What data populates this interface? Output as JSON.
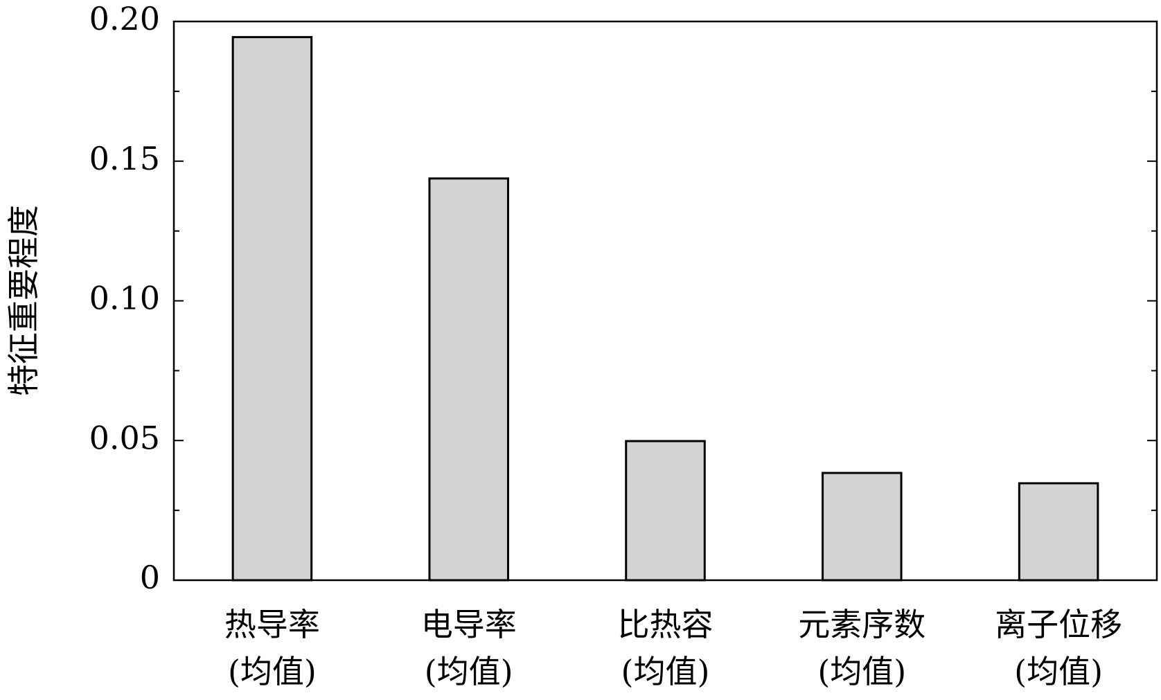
{
  "chart_data": {
    "type": "bar",
    "y_label": "特征重要程度",
    "categories": [
      "热导率\n(均值)",
      "电导率\n(均值)",
      "比热容\n(均值)",
      "元素序数\n(均值)",
      "离子位移\n(均值)"
    ],
    "values": [
      0.1944,
      0.1438,
      0.0498,
      0.0384,
      0.0347
    ],
    "color": "#d3d3d3",
    "edge_color": "#000000",
    "ylim": [
      0,
      0.2
    ],
    "yticks": [
      0,
      0.05,
      {
        "value": 0.1,
        "label": "0.10"
      },
      0.15,
      {
        "value": 0.2,
        "label": "0.20"
      }
    ],
    "minor_yticks": [
      0.025,
      0.075,
      0.125,
      0.175
    ],
    "grid": false
  }
}
